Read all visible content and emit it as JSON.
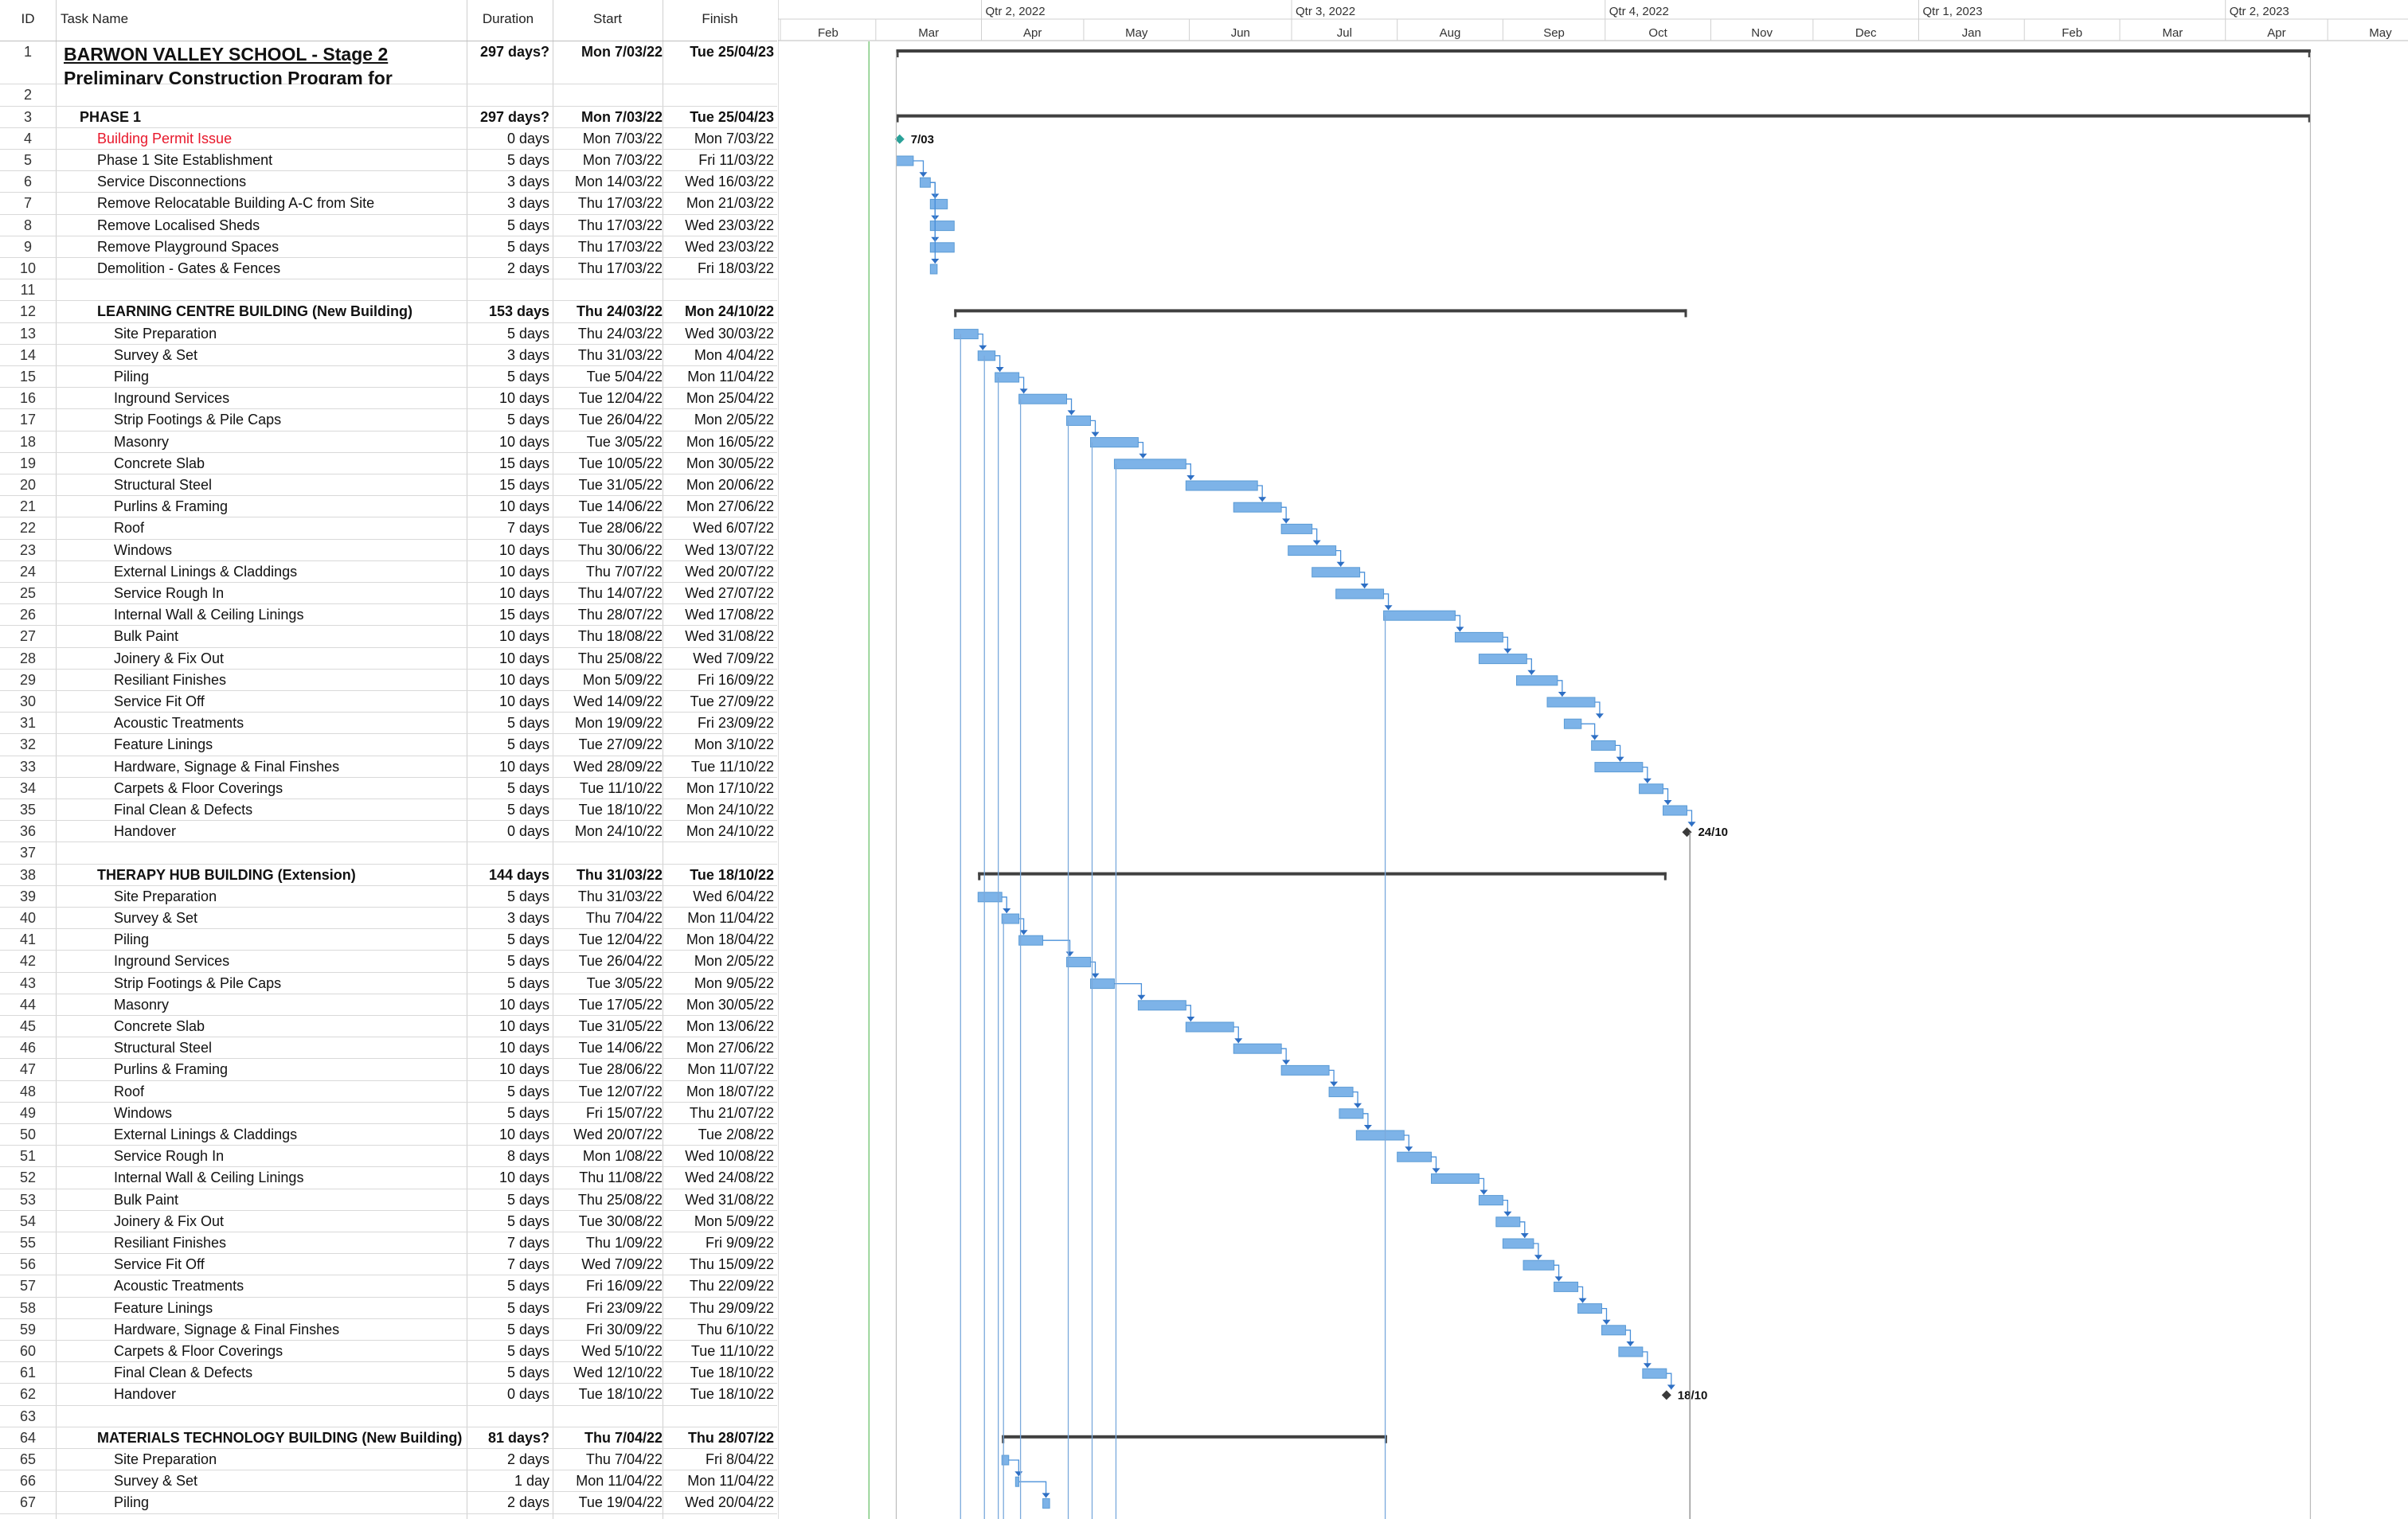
{
  "columns": {
    "id": "ID",
    "name": "Task Name",
    "duration": "Duration",
    "start": "Start",
    "finish": "Finish"
  },
  "timescale": {
    "quarters": [
      "Qtr 2, 2022",
      "Qtr 3, 2022",
      "Qtr 4, 2022",
      "Qtr 1, 2023",
      "Qtr 2, 2023"
    ],
    "months": [
      "Feb",
      "Mar",
      "Apr",
      "May",
      "Jun",
      "Jul",
      "Aug",
      "Sep",
      "Oct",
      "Nov",
      "Dec",
      "Jan",
      "Feb",
      "Mar",
      "Apr",
      "May"
    ]
  },
  "tasks": [
    {
      "id": "1",
      "name": "BARWON VALLEY SCHOOL - Stage 2",
      "name2": "Preliminary Construction Program for",
      "dur": "297 days?",
      "start": "Mon 7/03/22",
      "finish": "Tue 25/04/23",
      "style": "project"
    },
    {
      "id": "2",
      "name": "",
      "dur": "",
      "start": "",
      "finish": "",
      "style": "blank"
    },
    {
      "id": "3",
      "name": "PHASE 1",
      "dur": "297 days?",
      "start": "Mon 7/03/22",
      "finish": "Tue 25/04/23",
      "style": "summary",
      "indent": 1
    },
    {
      "id": "4",
      "name": "Building Permit Issue",
      "dur": "0 days",
      "start": "Mon 7/03/22",
      "finish": "Mon 7/03/22",
      "style": "milestone-red",
      "indent": 2
    },
    {
      "id": "5",
      "name": "Phase 1 Site Establishment",
      "dur": "5 days",
      "start": "Mon 7/03/22",
      "finish": "Fri 11/03/22",
      "indent": 2
    },
    {
      "id": "6",
      "name": "Service Disconnections",
      "dur": "3 days",
      "start": "Mon 14/03/22",
      "finish": "Wed 16/03/22",
      "indent": 2
    },
    {
      "id": "7",
      "name": "Remove Relocatable Building A-C from Site",
      "dur": "3 days",
      "start": "Thu 17/03/22",
      "finish": "Mon 21/03/22",
      "indent": 2
    },
    {
      "id": "8",
      "name": "Remove Localised Sheds",
      "dur": "5 days",
      "start": "Thu 17/03/22",
      "finish": "Wed 23/03/22",
      "indent": 2
    },
    {
      "id": "9",
      "name": "Remove Playground Spaces",
      "dur": "5 days",
      "start": "Thu 17/03/22",
      "finish": "Wed 23/03/22",
      "indent": 2
    },
    {
      "id": "10",
      "name": "Demolition - Gates & Fences",
      "dur": "2 days",
      "start": "Thu 17/03/22",
      "finish": "Fri 18/03/22",
      "indent": 2
    },
    {
      "id": "11",
      "name": "",
      "dur": "",
      "start": "",
      "finish": "",
      "style": "blank"
    },
    {
      "id": "12",
      "name": "LEARNING CENTRE BUILDING (New Building)",
      "dur": "153 days",
      "start": "Thu 24/03/22",
      "finish": "Mon 24/10/22",
      "style": "summary",
      "indent": 2
    },
    {
      "id": "13",
      "name": "Site Preparation",
      "dur": "5 days",
      "start": "Thu 24/03/22",
      "finish": "Wed 30/03/22",
      "indent": 3
    },
    {
      "id": "14",
      "name": "Survey & Set",
      "dur": "3 days",
      "start": "Thu 31/03/22",
      "finish": "Mon 4/04/22",
      "indent": 3
    },
    {
      "id": "15",
      "name": "Piling",
      "dur": "5 days",
      "start": "Tue 5/04/22",
      "finish": "Mon 11/04/22",
      "indent": 3
    },
    {
      "id": "16",
      "name": "Inground Services",
      "dur": "10 days",
      "start": "Tue 12/04/22",
      "finish": "Mon 25/04/22",
      "indent": 3
    },
    {
      "id": "17",
      "name": "Strip Footings & Pile Caps",
      "dur": "5 days",
      "start": "Tue 26/04/22",
      "finish": "Mon 2/05/22",
      "indent": 3
    },
    {
      "id": "18",
      "name": "Masonry",
      "dur": "10 days",
      "start": "Tue 3/05/22",
      "finish": "Mon 16/05/22",
      "indent": 3
    },
    {
      "id": "19",
      "name": "Concrete Slab",
      "dur": "15 days",
      "start": "Tue 10/05/22",
      "finish": "Mon 30/05/22",
      "indent": 3
    },
    {
      "id": "20",
      "name": "Structural Steel",
      "dur": "15 days",
      "start": "Tue 31/05/22",
      "finish": "Mon 20/06/22",
      "indent": 3
    },
    {
      "id": "21",
      "name": "Purlins & Framing",
      "dur": "10 days",
      "start": "Tue 14/06/22",
      "finish": "Mon 27/06/22",
      "indent": 3
    },
    {
      "id": "22",
      "name": "Roof",
      "dur": "7 days",
      "start": "Tue 28/06/22",
      "finish": "Wed 6/07/22",
      "indent": 3
    },
    {
      "id": "23",
      "name": "Windows",
      "dur": "10 days",
      "start": "Thu 30/06/22",
      "finish": "Wed 13/07/22",
      "indent": 3
    },
    {
      "id": "24",
      "name": "External Linings & Claddings",
      "dur": "10 days",
      "start": "Thu 7/07/22",
      "finish": "Wed 20/07/22",
      "indent": 3
    },
    {
      "id": "25",
      "name": "Service Rough In",
      "dur": "10 days",
      "start": "Thu 14/07/22",
      "finish": "Wed 27/07/22",
      "indent": 3
    },
    {
      "id": "26",
      "name": "Internal Wall & Ceiling Linings",
      "dur": "15 days",
      "start": "Thu 28/07/22",
      "finish": "Wed 17/08/22",
      "indent": 3
    },
    {
      "id": "27",
      "name": "Bulk Paint",
      "dur": "10 days",
      "start": "Thu 18/08/22",
      "finish": "Wed 31/08/22",
      "indent": 3
    },
    {
      "id": "28",
      "name": "Joinery & Fix Out",
      "dur": "10 days",
      "start": "Thu 25/08/22",
      "finish": "Wed 7/09/22",
      "indent": 3
    },
    {
      "id": "29",
      "name": "Resiliant Finishes",
      "dur": "10 days",
      "start": "Mon 5/09/22",
      "finish": "Fri 16/09/22",
      "indent": 3
    },
    {
      "id": "30",
      "name": "Service Fit Off",
      "dur": "10 days",
      "start": "Wed 14/09/22",
      "finish": "Tue 27/09/22",
      "indent": 3
    },
    {
      "id": "31",
      "name": "Acoustic Treatments",
      "dur": "5 days",
      "start": "Mon 19/09/22",
      "finish": "Fri 23/09/22",
      "indent": 3
    },
    {
      "id": "32",
      "name": "Feature Linings",
      "dur": "5 days",
      "start": "Tue 27/09/22",
      "finish": "Mon 3/10/22",
      "indent": 3
    },
    {
      "id": "33",
      "name": "Hardware, Signage & Final Finshes",
      "dur": "10 days",
      "start": "Wed 28/09/22",
      "finish": "Tue 11/10/22",
      "indent": 3
    },
    {
      "id": "34",
      "name": "Carpets & Floor Coverings",
      "dur": "5 days",
      "start": "Tue 11/10/22",
      "finish": "Mon 17/10/22",
      "indent": 3
    },
    {
      "id": "35",
      "name": "Final Clean & Defects",
      "dur": "5 days",
      "start": "Tue 18/10/22",
      "finish": "Mon 24/10/22",
      "indent": 3
    },
    {
      "id": "36",
      "name": "Handover",
      "dur": "0 days",
      "start": "Mon 24/10/22",
      "finish": "Mon 24/10/22",
      "indent": 3
    },
    {
      "id": "37",
      "name": "",
      "dur": "",
      "start": "",
      "finish": "",
      "style": "blank"
    },
    {
      "id": "38",
      "name": "THERAPY HUB BUILDING (Extension)",
      "dur": "144 days",
      "start": "Thu 31/03/22",
      "finish": "Tue 18/10/22",
      "style": "summary",
      "indent": 2
    },
    {
      "id": "39",
      "name": "Site Preparation",
      "dur": "5 days",
      "start": "Thu 31/03/22",
      "finish": "Wed 6/04/22",
      "indent": 3
    },
    {
      "id": "40",
      "name": "Survey & Set",
      "dur": "3 days",
      "start": "Thu 7/04/22",
      "finish": "Mon 11/04/22",
      "indent": 3
    },
    {
      "id": "41",
      "name": "Piling",
      "dur": "5 days",
      "start": "Tue 12/04/22",
      "finish": "Mon 18/04/22",
      "indent": 3
    },
    {
      "id": "42",
      "name": "Inground Services",
      "dur": "5 days",
      "start": "Tue 26/04/22",
      "finish": "Mon 2/05/22",
      "indent": 3
    },
    {
      "id": "43",
      "name": "Strip Footings & Pile Caps",
      "dur": "5 days",
      "start": "Tue 3/05/22",
      "finish": "Mon 9/05/22",
      "indent": 3
    },
    {
      "id": "44",
      "name": "Masonry",
      "dur": "10 days",
      "start": "Tue 17/05/22",
      "finish": "Mon 30/05/22",
      "indent": 3
    },
    {
      "id": "45",
      "name": "Concrete Slab",
      "dur": "10 days",
      "start": "Tue 31/05/22",
      "finish": "Mon 13/06/22",
      "indent": 3
    },
    {
      "id": "46",
      "name": "Structural Steel",
      "dur": "10 days",
      "start": "Tue 14/06/22",
      "finish": "Mon 27/06/22",
      "indent": 3
    },
    {
      "id": "47",
      "name": "Purlins & Framing",
      "dur": "10 days",
      "start": "Tue 28/06/22",
      "finish": "Mon 11/07/22",
      "indent": 3
    },
    {
      "id": "48",
      "name": "Roof",
      "dur": "5 days",
      "start": "Tue 12/07/22",
      "finish": "Mon 18/07/22",
      "indent": 3
    },
    {
      "id": "49",
      "name": "Windows",
      "dur": "5 days",
      "start": "Fri 15/07/22",
      "finish": "Thu 21/07/22",
      "indent": 3
    },
    {
      "id": "50",
      "name": "External Linings & Claddings",
      "dur": "10 days",
      "start": "Wed 20/07/22",
      "finish": "Tue 2/08/22",
      "indent": 3
    },
    {
      "id": "51",
      "name": "Service Rough In",
      "dur": "8 days",
      "start": "Mon 1/08/22",
      "finish": "Wed 10/08/22",
      "indent": 3
    },
    {
      "id": "52",
      "name": "Internal Wall & Ceiling Linings",
      "dur": "10 days",
      "start": "Thu 11/08/22",
      "finish": "Wed 24/08/22",
      "indent": 3
    },
    {
      "id": "53",
      "name": "Bulk Paint",
      "dur": "5 days",
      "start": "Thu 25/08/22",
      "finish": "Wed 31/08/22",
      "indent": 3
    },
    {
      "id": "54",
      "name": "Joinery & Fix Out",
      "dur": "5 days",
      "start": "Tue 30/08/22",
      "finish": "Mon 5/09/22",
      "indent": 3
    },
    {
      "id": "55",
      "name": "Resiliant Finishes",
      "dur": "7 days",
      "start": "Thu 1/09/22",
      "finish": "Fri 9/09/22",
      "indent": 3
    },
    {
      "id": "56",
      "name": "Service Fit Off",
      "dur": "7 days",
      "start": "Wed 7/09/22",
      "finish": "Thu 15/09/22",
      "indent": 3
    },
    {
      "id": "57",
      "name": "Acoustic Treatments",
      "dur": "5 days",
      "start": "Fri 16/09/22",
      "finish": "Thu 22/09/22",
      "indent": 3
    },
    {
      "id": "58",
      "name": "Feature Linings",
      "dur": "5 days",
      "start": "Fri 23/09/22",
      "finish": "Thu 29/09/22",
      "indent": 3
    },
    {
      "id": "59",
      "name": "Hardware, Signage & Final Finshes",
      "dur": "5 days",
      "start": "Fri 30/09/22",
      "finish": "Thu 6/10/22",
      "indent": 3
    },
    {
      "id": "60",
      "name": "Carpets & Floor Coverings",
      "dur": "5 days",
      "start": "Wed 5/10/22",
      "finish": "Tue 11/10/22",
      "indent": 3
    },
    {
      "id": "61",
      "name": "Final Clean & Defects",
      "dur": "5 days",
      "start": "Wed 12/10/22",
      "finish": "Tue 18/10/22",
      "indent": 3
    },
    {
      "id": "62",
      "name": "Handover",
      "dur": "0 days",
      "start": "Tue 18/10/22",
      "finish": "Tue 18/10/22",
      "indent": 3
    },
    {
      "id": "63",
      "name": "",
      "dur": "",
      "start": "",
      "finish": "",
      "style": "blank"
    },
    {
      "id": "64",
      "name": "MATERIALS TECHNOLOGY BUILDING (New Building)",
      "dur": "81 days?",
      "start": "Thu 7/04/22",
      "finish": "Thu 28/07/22",
      "style": "summary",
      "indent": 2
    },
    {
      "id": "65",
      "name": "Site Preparation",
      "dur": "2 days",
      "start": "Thu 7/04/22",
      "finish": "Fri 8/04/22",
      "indent": 3
    },
    {
      "id": "66",
      "name": "Survey & Set",
      "dur": "1 day",
      "start": "Mon 11/04/22",
      "finish": "Mon 11/04/22",
      "indent": 3
    },
    {
      "id": "67",
      "name": "Piling",
      "dur": "2 days",
      "start": "Tue 19/04/22",
      "finish": "Wed 20/04/22",
      "indent": 3
    }
  ],
  "milestone_labels": {
    "4": "7/03",
    "36": "24/10",
    "62": "18/10"
  },
  "colors": {
    "task_bar": "#7db3e8",
    "task_bar_border": "#5b9bd5",
    "summary_bar": "#404040",
    "link": "#4a90d9",
    "milestone": "#3a3a3a",
    "milestone_start": "#2aa198",
    "today_line": "#7fc97f",
    "red_text": "#e8182b"
  }
}
